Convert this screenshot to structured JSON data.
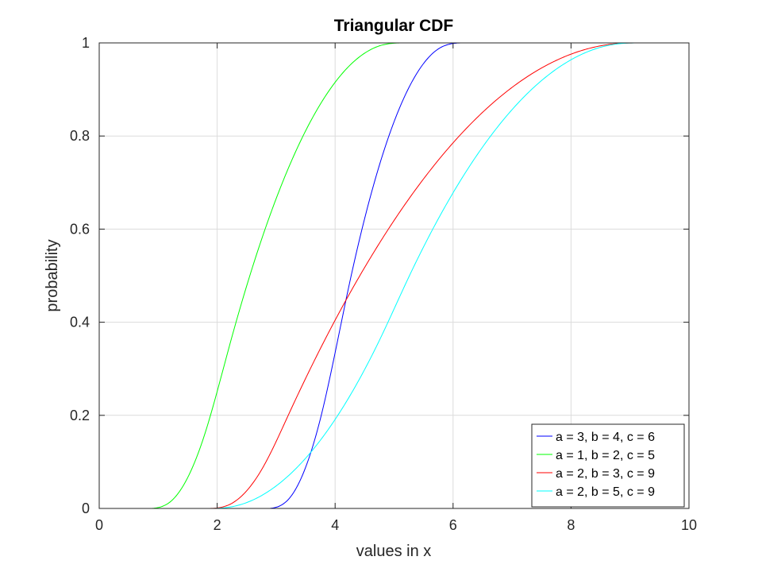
{
  "chart_data": {
    "type": "line",
    "title": "Triangular CDF",
    "xlabel": "values in x",
    "ylabel": "probability",
    "xlim": [
      0,
      10
    ],
    "ylim": [
      0,
      1
    ],
    "xticks": [
      0,
      2,
      4,
      6,
      8,
      10
    ],
    "yticks": [
      0,
      0.2,
      0.4,
      0.6,
      0.8,
      1
    ],
    "xtick_labels": [
      "0",
      "2",
      "4",
      "6",
      "8",
      "10"
    ],
    "ytick_labels": [
      "0",
      "0.2",
      "0.4",
      "0.6",
      "0.8",
      "1"
    ],
    "grid": true,
    "legend_position": "bottom-right",
    "series": [
      {
        "name": "a = 3, b = 4, c = 6",
        "a": 3,
        "b": 4,
        "c": 6,
        "color": "#0000ff"
      },
      {
        "name": "a = 1, b = 2, c = 5",
        "a": 1,
        "b": 2,
        "c": 5,
        "color": "#00ff00"
      },
      {
        "name": "a = 2, b = 3, c = 9",
        "a": 2,
        "b": 3,
        "c": 9,
        "color": "#ff0000"
      },
      {
        "name": "a = 2, b = 5, c = 9",
        "a": 2,
        "b": 5,
        "c": 9,
        "color": "#00ffff"
      }
    ]
  }
}
